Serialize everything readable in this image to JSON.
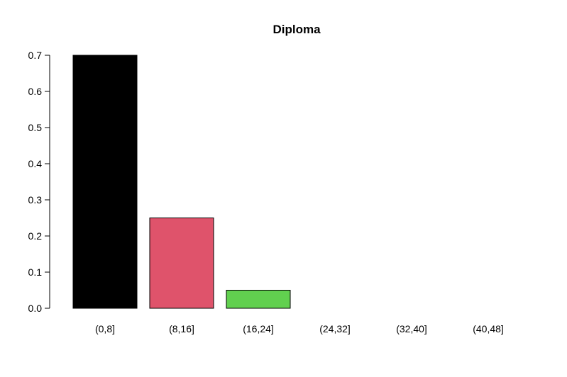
{
  "chart_data": {
    "type": "bar",
    "title": "Diploma",
    "xlabel": "",
    "ylabel": "",
    "categories": [
      "(0,8]",
      "(8,16]",
      "(16,24]",
      "(24,32]",
      "(32,40]",
      "(40,48]"
    ],
    "values": [
      0.7,
      0.25,
      0.05,
      0.0,
      0.0,
      0.0
    ],
    "colors": [
      "#000000",
      "#DF536B",
      "#61D04F",
      "#2297E6",
      "#28E2E5",
      "#CD0BBC"
    ],
    "ylim": [
      0,
      0.7
    ],
    "yticks": [
      "0.0",
      "0.1",
      "0.2",
      "0.3",
      "0.4",
      "0.5",
      "0.6",
      "0.7"
    ],
    "grid": false
  }
}
